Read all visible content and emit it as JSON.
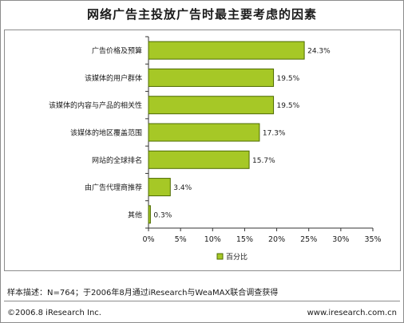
{
  "colors": {
    "bar_fill": "#a6c826",
    "bar_stroke": "#4d6b00",
    "axis": "#333333",
    "border": "#8c8c8c"
  },
  "footer": {
    "note": "样本描述：N=764；于2006年8月通过iResearch与WeaMAX联合调查获得",
    "copyright": "©2006.8 iResearch Inc.",
    "website": "www.iresearch.com.cn"
  },
  "chart_data": {
    "type": "bar",
    "orientation": "horizontal",
    "title": "网络广告主投放广告时最主要考虑的因素",
    "categories": [
      "广告价格及预算",
      "该媒体的用户群体",
      "该媒体的内容与产品的相关性",
      "该媒体的地区覆盖范围",
      "网站的全球排名",
      "由广告代理商推荐",
      "其他"
    ],
    "values": [
      24.3,
      19.5,
      19.5,
      17.3,
      15.7,
      3.4,
      0.3
    ],
    "value_labels": [
      "24.3%",
      "19.5%",
      "19.5%",
      "17.3%",
      "15.7%",
      "3.4%",
      "0.3%"
    ],
    "series": [
      {
        "name": "百分比",
        "values": [
          24.3,
          19.5,
          19.5,
          17.3,
          15.7,
          3.4,
          0.3
        ]
      }
    ],
    "xlim": [
      0,
      35
    ],
    "xticks": [
      0,
      5,
      10,
      15,
      20,
      25,
      30,
      35
    ],
    "xtick_labels": [
      "0%",
      "5%",
      "10%",
      "15%",
      "20%",
      "25%",
      "30%",
      "35%"
    ],
    "grid": false,
    "legend_position": "bottom"
  }
}
